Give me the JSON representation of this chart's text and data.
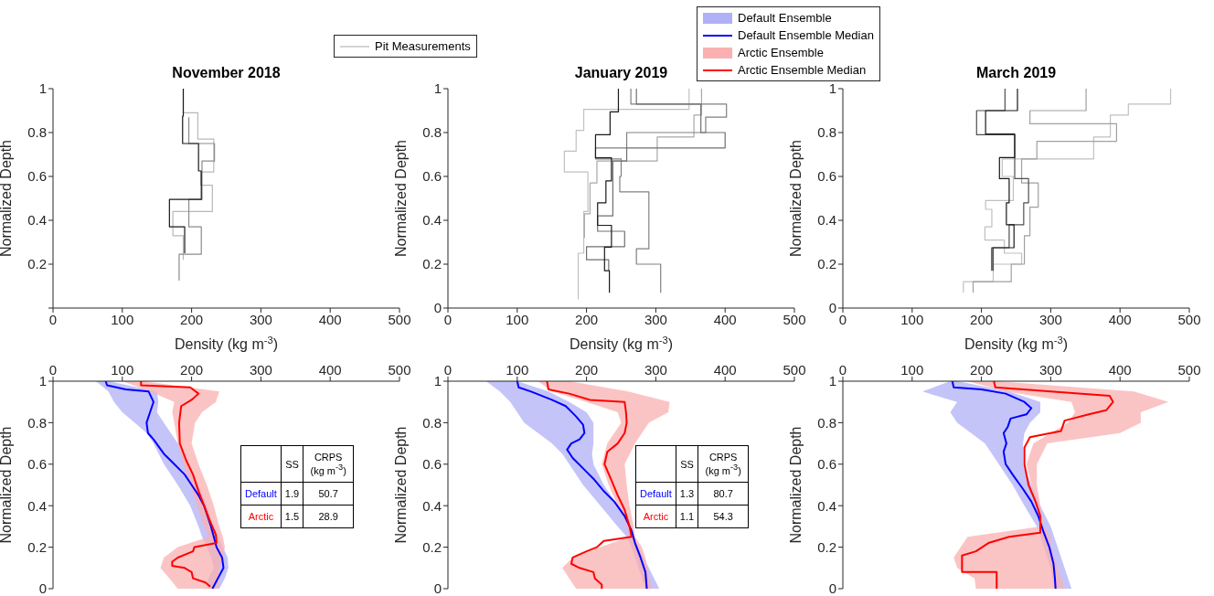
{
  "chart_data": [
    {
      "type": "line",
      "title": "November 2018",
      "xlabel": "Density (kg m$^{-3}$)",
      "ylabel": "Normalized Depth",
      "xlim": [
        0,
        500
      ],
      "xticks": [
        0,
        100,
        200,
        300,
        400,
        500
      ],
      "ylim": [
        0,
        1
      ],
      "yticks": [
        {
          "value": 0,
          "label": null
        },
        0.2,
        0.4,
        0.6,
        0.8,
        1
      ],
      "legend": "top right",
      "series": [
        {
          "name": "Pit Measurements",
          "color": "#b8b8b8",
          "x": [
            188,
            188,
            209,
            209,
            232,
            232,
            213,
            213,
            230,
            230,
            173,
            173,
            188,
            188
          ],
          "values": [
            1,
            0.89,
            0.89,
            0.77,
            0.77,
            0.62,
            0.62,
            0.56,
            0.56,
            0.44,
            0.44,
            0.33,
            0.33,
            0.22
          ]
        },
        {
          "color": "#8c8c8c",
          "x": [
            196,
            196,
            233,
            233,
            215,
            215,
            196,
            196,
            214,
            214,
            182,
            182
          ],
          "values": [
            0.87,
            0.75,
            0.75,
            0.67,
            0.67,
            0.495,
            0.495,
            0.37,
            0.37,
            0.245,
            0.245,
            0.125
          ]
        },
        {
          "color": "#1a1a1a",
          "x": [
            188,
            188,
            187,
            187,
            210,
            210,
            214,
            214,
            168,
            168,
            190,
            190
          ],
          "values": [
            1,
            0.875,
            0.875,
            0.75,
            0.75,
            0.625,
            0.625,
            0.495,
            0.495,
            0.37,
            0.37,
            0.25
          ]
        }
      ]
    },
    {
      "type": "line",
      "title": "January 2019",
      "xlabel": "Density (kg m$^{-3}$)",
      "ylabel": "Normalized Depth",
      "xlim": [
        0,
        500
      ],
      "xticks": [
        0,
        100,
        200,
        300,
        400,
        500
      ],
      "ylim": [
        0,
        1
      ],
      "yticks": [
        0,
        0.2,
        0.4,
        0.6,
        0.8,
        1
      ],
      "series": [
        {
          "color": "#c0c0c0",
          "x": [
            348,
            348,
            196,
            196,
            185,
            185,
            168,
            168,
            202,
            202,
            196,
            196,
            188,
            188
          ],
          "values": [
            1,
            0.906,
            0.906,
            0.81,
            0.81,
            0.715,
            0.715,
            0.62,
            0.62,
            0.44,
            0.44,
            0.25,
            0.25,
            0.04
          ]
        },
        {
          "color": "#a8a8a8",
          "x": [
            366,
            366,
            355,
            355,
            302,
            302,
            215,
            215,
            205,
            205,
            197,
            197
          ],
          "values": [
            1,
            0.88,
            0.88,
            0.78,
            0.78,
            0.67,
            0.67,
            0.57,
            0.57,
            0.43,
            0.43,
            0.32
          ]
        },
        {
          "color": "#808080",
          "x": [
            264,
            264,
            402,
            402,
            372,
            372,
            258,
            258,
            213,
            213,
            250,
            250,
            248,
            248,
            290,
            290,
            272,
            272,
            307,
            307
          ],
          "values": [
            1,
            0.93,
            0.93,
            0.87,
            0.87,
            0.8,
            0.8,
            0.73,
            0.73,
            0.68,
            0.68,
            0.6,
            0.6,
            0.53,
            0.53,
            0.27,
            0.27,
            0.2,
            0.2,
            0.07
          ]
        },
        {
          "color": "#707070",
          "x": [
            272,
            272,
            365,
            365,
            400,
            400,
            258,
            258,
            238,
            238,
            216,
            216,
            255,
            255,
            200,
            200,
            232,
            232
          ],
          "values": [
            1,
            0.93,
            0.93,
            0.8,
            0.8,
            0.73,
            0.73,
            0.67,
            0.67,
            0.42,
            0.42,
            0.35,
            0.35,
            0.28,
            0.28,
            0.22,
            0.22,
            0.17
          ]
        },
        {
          "color": "#1a1a1a",
          "x": [
            246,
            246,
            234,
            234,
            213,
            213,
            236,
            236,
            228,
            228,
            216,
            216,
            236,
            236,
            226,
            226,
            233,
            233
          ],
          "values": [
            1,
            0.894,
            0.894,
            0.79,
            0.79,
            0.685,
            0.685,
            0.58,
            0.58,
            0.48,
            0.48,
            0.377,
            0.377,
            0.278,
            0.278,
            0.17,
            0.17,
            0.07
          ]
        }
      ]
    },
    {
      "type": "line",
      "title": "March 2019",
      "xlabel": "Density (kg m$^{-3}$)",
      "ylabel": "Normalized Depth",
      "xlim": [
        0,
        500
      ],
      "xticks": [
        0,
        100,
        200,
        300,
        400,
        500
      ],
      "ylim": [
        0,
        1
      ],
      "yticks": [
        0,
        0.2,
        0.4,
        0.6,
        0.8,
        1
      ],
      "series": [
        {
          "color": "#c0c0c0",
          "x": [
            473,
            473,
            412,
            412,
            386,
            386,
            362,
            362,
            230,
            230,
            246,
            246,
            206,
            206,
            215,
            215,
            205,
            205,
            233,
            233,
            258,
            258,
            217,
            217,
            174,
            174
          ],
          "values": [
            1,
            0.93,
            0.93,
            0.88,
            0.88,
            0.78,
            0.78,
            0.68,
            0.68,
            0.6,
            0.6,
            0.49,
            0.49,
            0.45,
            0.45,
            0.37,
            0.37,
            0.31,
            0.31,
            0.25,
            0.25,
            0.2,
            0.2,
            0.12,
            0.12,
            0.07
          ]
        },
        {
          "color": "#a0a0a0",
          "x": [
            351,
            351,
            270,
            270,
            395,
            395,
            280,
            280,
            258,
            258,
            282,
            282,
            270,
            270,
            262,
            262,
            243,
            243,
            188,
            188
          ],
          "values": [
            1,
            0.9,
            0.9,
            0.84,
            0.84,
            0.76,
            0.76,
            0.68,
            0.68,
            0.57,
            0.57,
            0.46,
            0.46,
            0.33,
            0.33,
            0.2,
            0.2,
            0.12,
            0.12,
            0.07
          ]
        },
        {
          "color": "#505050",
          "x": [
            234,
            234,
            193,
            193,
            248,
            248,
            268,
            268,
            261,
            261,
            240,
            240,
            217,
            217
          ],
          "values": [
            1,
            0.9,
            0.9,
            0.79,
            0.79,
            0.59,
            0.59,
            0.48,
            0.48,
            0.38,
            0.38,
            0.275,
            0.275,
            0.17
          ]
        },
        {
          "color": "#1a1a1a",
          "x": [
            252,
            252,
            206,
            206,
            248,
            248,
            226,
            226,
            240,
            240,
            236,
            236,
            247,
            247,
            215,
            215
          ],
          "values": [
            1,
            0.9,
            0.9,
            0.793,
            0.793,
            0.686,
            0.686,
            0.59,
            0.59,
            0.48,
            0.48,
            0.38,
            0.38,
            0.275,
            0.275,
            0.17
          ]
        }
      ]
    },
    {
      "type": "line",
      "ylabel": "Normalized Depth",
      "xlim": [
        0,
        500
      ],
      "xticks": [
        0,
        100,
        200,
        300,
        400,
        500
      ],
      "ylim": [
        0,
        1
      ],
      "yticks": [
        0,
        0.2,
        0.4,
        0.6,
        0.8,
        1
      ],
      "annotations": [
        "SS",
        "CRPS (kg m$^{-3}$)",
        "Default",
        "1.9",
        "50.7",
        "Arctic",
        "1.5",
        "28.9"
      ],
      "series": [
        {
          "type": "area",
          "color": "#b0b0f7",
          "x": [
            62,
            80,
            88,
            100,
            118,
            135,
            145,
            160,
            180,
            198,
            210,
            215,
            222,
            228,
            232,
            224,
            222,
            240,
            248,
            253,
            252,
            245,
            238,
            232,
            222,
            210,
            196,
            180,
            170,
            160,
            150,
            152,
            150,
            80
          ],
          "values": [
            1,
            0.95,
            0.9,
            0.85,
            0.8,
            0.75,
            0.7,
            0.6,
            0.5,
            0.4,
            0.3,
            0.25,
            0.2,
            0.15,
            0.1,
            0.05,
            0,
            0,
            0.05,
            0.1,
            0.15,
            0.2,
            0.25,
            0.3,
            0.4,
            0.5,
            0.6,
            0.7,
            0.75,
            0.8,
            0.85,
            0.9,
            0.95,
            1
          ]
        },
        {
          "color": "#0000ff",
          "x": [
            76,
            78,
            105,
            138,
            145,
            140,
            135,
            137,
            145,
            160,
            175,
            190,
            200,
            210,
            218,
            223,
            228,
            232,
            236,
            244,
            246,
            238,
            230
          ],
          "values": [
            1,
            0.98,
            0.96,
            0.95,
            0.9,
            0.85,
            0.8,
            0.75,
            0.72,
            0.65,
            0.6,
            0.55,
            0.5,
            0.45,
            0.4,
            0.35,
            0.3,
            0.25,
            0.2,
            0.15,
            0.1,
            0.05,
            0
          ]
        },
        {
          "type": "area",
          "color": "#fab0b0",
          "x": [
            100,
            140,
            175,
            172,
            175,
            180,
            188,
            198,
            208,
            218,
            225,
            180,
            160,
            155,
            168,
            180,
            238,
            240,
            240,
            245,
            248,
            245,
            240,
            232,
            222,
            210,
            200,
            205,
            215,
            235,
            240,
            130
          ],
          "values": [
            1,
            0.95,
            0.9,
            0.85,
            0.8,
            0.7,
            0.6,
            0.5,
            0.4,
            0.3,
            0.25,
            0.2,
            0.15,
            0.1,
            0.05,
            0,
            0,
            0.05,
            0.1,
            0.15,
            0.2,
            0.25,
            0.3,
            0.4,
            0.5,
            0.6,
            0.7,
            0.8,
            0.85,
            0.9,
            0.95,
            1
          ]
        },
        {
          "color": "#ff0000",
          "x": [
            127,
            127,
            198,
            210,
            200,
            185,
            182,
            183,
            192,
            202,
            210,
            218,
            226,
            235,
            236,
            204,
            202,
            180,
            172,
            172,
            190,
            200,
            202,
            220,
            227
          ],
          "values": [
            1,
            0.98,
            0.97,
            0.94,
            0.91,
            0.88,
            0.8,
            0.7,
            0.62,
            0.55,
            0.47,
            0.4,
            0.33,
            0.26,
            0.22,
            0.2,
            0.18,
            0.15,
            0.13,
            0.11,
            0.1,
            0.08,
            0.05,
            0.03,
            0.01
          ]
        }
      ]
    },
    {
      "type": "line",
      "ylabel": "Normalized Depth",
      "xlim": [
        0,
        500
      ],
      "xticks": [
        0,
        100,
        200,
        300,
        400,
        500
      ],
      "ylim": [
        0,
        1
      ],
      "yticks": [
        0,
        0.2,
        0.4,
        0.6,
        0.8,
        1
      ],
      "annotations": [
        "SS",
        "CRPS (kg m$^{-3}$)",
        "Default",
        "1.3",
        "80.7",
        "Arctic",
        "1.1",
        "54.3"
      ],
      "series": [
        {
          "type": "area",
          "color": "#b0b0f7",
          "x": [
            55,
            75,
            90,
            100,
            110,
            130,
            150,
            165,
            175,
            195,
            220,
            245,
            258,
            265,
            275,
            285,
            305,
            290,
            275,
            268,
            262,
            245,
            225,
            210,
            208,
            210,
            210,
            210,
            200,
            175,
            145,
            100
          ],
          "values": [
            1,
            0.95,
            0.9,
            0.85,
            0.8,
            0.75,
            0.7,
            0.65,
            0.6,
            0.5,
            0.4,
            0.3,
            0.25,
            0.2,
            0.1,
            0,
            0,
            0.1,
            0.2,
            0.25,
            0.3,
            0.4,
            0.5,
            0.6,
            0.65,
            0.7,
            0.75,
            0.8,
            0.85,
            0.9,
            0.95,
            1
          ]
        },
        {
          "color": "#0000ff",
          "x": [
            100,
            102,
            120,
            150,
            170,
            185,
            195,
            197,
            190,
            178,
            172,
            180,
            195,
            210,
            225,
            240,
            255,
            265,
            270,
            278,
            285,
            287
          ],
          "values": [
            1,
            0.97,
            0.95,
            0.91,
            0.88,
            0.83,
            0.79,
            0.75,
            0.72,
            0.7,
            0.67,
            0.63,
            0.58,
            0.53,
            0.47,
            0.42,
            0.35,
            0.28,
            0.22,
            0.15,
            0.08,
            0
          ]
        },
        {
          "type": "area",
          "color": "#fab0b0",
          "x": [
            130,
            150,
            200,
            245,
            250,
            230,
            222,
            232,
            245,
            258,
            262,
            220,
            180,
            165,
            175,
            185,
            295,
            290,
            288,
            285,
            280,
            270,
            268,
            262,
            258,
            255,
            270,
            290,
            318,
            320,
            260,
            175
          ],
          "values": [
            1,
            0.95,
            0.9,
            0.85,
            0.8,
            0.7,
            0.6,
            0.5,
            0.4,
            0.3,
            0.25,
            0.2,
            0.15,
            0.1,
            0.05,
            0,
            0,
            0.05,
            0.1,
            0.15,
            0.2,
            0.25,
            0.3,
            0.4,
            0.5,
            0.6,
            0.7,
            0.8,
            0.85,
            0.9,
            0.95,
            1
          ]
        },
        {
          "color": "#ff0000",
          "x": [
            143,
            145,
            175,
            205,
            255,
            257,
            258,
            255,
            245,
            230,
            226,
            235,
            245,
            255,
            262,
            265,
            225,
            215,
            200,
            180,
            178,
            190,
            210,
            212,
            222,
            222
          ],
          "values": [
            1,
            0.96,
            0.94,
            0.91,
            0.9,
            0.85,
            0.8,
            0.75,
            0.7,
            0.66,
            0.6,
            0.53,
            0.45,
            0.38,
            0.3,
            0.25,
            0.23,
            0.2,
            0.18,
            0.15,
            0.12,
            0.1,
            0.08,
            0.05,
            0.02,
            0
          ]
        }
      ]
    },
    {
      "type": "line",
      "ylabel": "Normalized Depth",
      "xlim": [
        0,
        500
      ],
      "xticks": [
        0,
        100,
        200,
        300,
        400,
        500
      ],
      "ylim": [
        0,
        1
      ],
      "yticks": [
        0,
        0.2,
        0.4,
        0.6,
        0.8,
        1
      ],
      "legend": "top left",
      "series": [
        {
          "name": "Default Ensemble",
          "type": "area",
          "color": "#b0b0f7",
          "x": [
            155,
            115,
            165,
            155,
            165,
            185,
            205,
            225,
            245,
            262,
            280,
            290,
            300,
            305,
            330,
            320,
            310,
            300,
            285,
            272,
            260,
            260,
            262,
            270,
            285,
            285,
            240,
            165
          ],
          "values": [
            1,
            0.95,
            0.9,
            0.85,
            0.8,
            0.75,
            0.7,
            0.6,
            0.5,
            0.4,
            0.3,
            0.2,
            0.1,
            0,
            0,
            0.1,
            0.2,
            0.3,
            0.4,
            0.5,
            0.6,
            0.7,
            0.75,
            0.8,
            0.85,
            0.9,
            0.95,
            1
          ]
        },
        {
          "name": "Default Ensemble Median",
          "color": "#0000ff",
          "x": [
            158,
            160,
            200,
            235,
            262,
            272,
            265,
            242,
            238,
            232,
            236,
            232,
            235,
            245,
            260,
            272,
            282,
            290,
            298,
            304,
            306,
            307
          ],
          "values": [
            1,
            0.97,
            0.96,
            0.94,
            0.9,
            0.87,
            0.84,
            0.82,
            0.78,
            0.75,
            0.7,
            0.66,
            0.6,
            0.55,
            0.48,
            0.42,
            0.35,
            0.27,
            0.2,
            0.12,
            0.05,
            0
          ]
        },
        {
          "name": "Arctic Ensemble",
          "type": "area",
          "color": "#fab0b0",
          "x": [
            180,
            235,
            330,
            335,
            325,
            300,
            275,
            265,
            272,
            280,
            285,
            180,
            170,
            160,
            165,
            190,
            192,
            320,
            315,
            310,
            305,
            300,
            300,
            290,
            285,
            280,
            280,
            295,
            400,
            430,
            430,
            470,
            420,
            220
          ],
          "values": [
            1,
            0.95,
            0.9,
            0.85,
            0.8,
            0.75,
            0.7,
            0.6,
            0.5,
            0.4,
            0.3,
            0.25,
            0.2,
            0.15,
            0.1,
            0.05,
            0,
            0,
            0.05,
            0.1,
            0.15,
            0.2,
            0.25,
            0.3,
            0.4,
            0.5,
            0.6,
            0.7,
            0.75,
            0.8,
            0.85,
            0.9,
            0.95,
            1
          ]
        },
        {
          "name": "Arctic Ensemble Median",
          "color": "#ff0000",
          "x": [
            218,
            220,
            300,
            385,
            390,
            380,
            355,
            320,
            315,
            270,
            262,
            262,
            268,
            278,
            285,
            285,
            240,
            210,
            192,
            172,
            172,
            222,
            222
          ],
          "values": [
            1,
            0.97,
            0.95,
            0.93,
            0.9,
            0.86,
            0.84,
            0.81,
            0.76,
            0.73,
            0.68,
            0.6,
            0.5,
            0.42,
            0.35,
            0.27,
            0.25,
            0.22,
            0.18,
            0.16,
            0.08,
            0.08,
            0
          ]
        }
      ]
    }
  ]
}
